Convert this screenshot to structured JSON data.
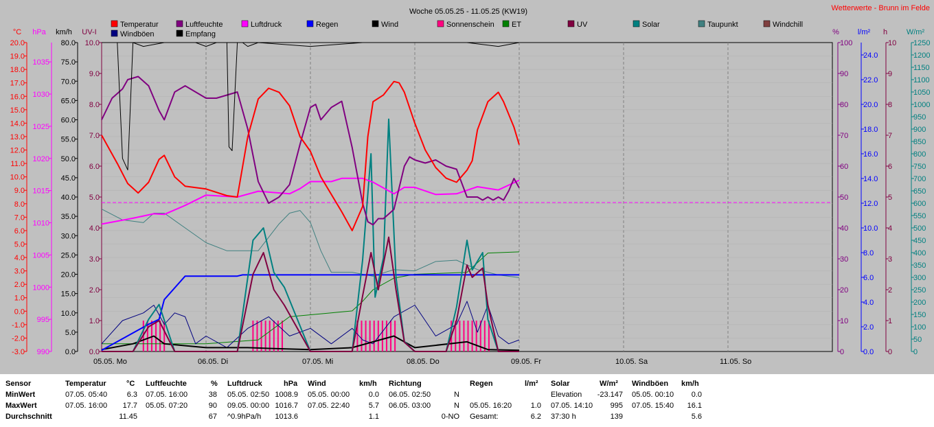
{
  "title": "Woche 05.05.25 - 11.05.25 (KW19)",
  "site_title": "Wetterwerte - Brunn im Felde",
  "colors": {
    "temperature": "#ff0000",
    "humidity": "#800080",
    "pressure": "#ff00ff",
    "rain": "#0000ff",
    "wind": "#000000",
    "sunshine": "#ff0080",
    "et": "#008000",
    "uv": "#800040",
    "solar": "#008080",
    "dewpoint": "#408080",
    "windchill": "#804040",
    "gusts": "#000080",
    "reception": "#000000"
  },
  "chart_data": {
    "type": "line",
    "title": "Woche 05.05.25 - 11.05.25 (KW19)",
    "x_labels": [
      "05.05. Mo",
      "06.05. Di",
      "07.05. Mi",
      "08.05. Do",
      "09.05. Fr",
      "10.05. Sa",
      "11.05. So"
    ],
    "xlim_days": [
      0,
      7
    ],
    "grid": true,
    "legend": [
      "Temperatur",
      "Luftfeuchte",
      "Luftdruck",
      "Regen",
      "Wind",
      "Sonnenschein",
      "ET",
      "UV",
      "Solar",
      "Taupunkt",
      "Windchill",
      "Windböen",
      "Empfang"
    ],
    "axes": {
      "temp_c": {
        "unit": "°C",
        "range": [
          -3,
          20
        ],
        "ticks": [
          "20.0",
          "19.0",
          "18.0",
          "17.0",
          "16.0",
          "15.0",
          "14.0",
          "13.0",
          "12.0",
          "11.0",
          "10.0",
          "9.0",
          "8.0",
          "7.0",
          "6.0",
          "5.0",
          "4.0",
          "3.0",
          "2.0",
          "1.0",
          "0.0",
          "-1.0",
          "-2.0",
          "-3.0"
        ]
      },
      "pressure_hpa": {
        "unit": "hPa",
        "range": [
          990,
          1038
        ],
        "ticks": [
          "1035",
          "1030",
          "1025",
          "1020",
          "1015",
          "1010",
          "1005",
          "1000",
          "995",
          "990"
        ]
      },
      "wind_kmh": {
        "unit": "km/h",
        "range": [
          0,
          80
        ],
        "ticks": [
          "80.0",
          "75.0",
          "70.0",
          "65.0",
          "60.0",
          "55.0",
          "50.0",
          "45.0",
          "40.0",
          "35.0",
          "30.0",
          "25.0",
          "20.0",
          "15.0",
          "10.0",
          "5.0",
          "0.0"
        ]
      },
      "uv_i": {
        "unit": "UV-I",
        "range": [
          0,
          10
        ],
        "ticks": [
          "10.0",
          "9.0",
          "8.0",
          "7.0",
          "6.0",
          "5.0",
          "4.0",
          "3.0",
          "2.0",
          "1.0",
          "0.0"
        ]
      },
      "humidity_pct": {
        "unit": "%",
        "range": [
          0,
          100
        ],
        "ticks": [
          "100",
          "90",
          "80",
          "70",
          "60",
          "50",
          "40",
          "30",
          "20",
          "10",
          "0"
        ]
      },
      "rain_lm2": {
        "unit": "l/m²",
        "range": [
          0,
          25
        ],
        "ticks": [
          "24.0",
          "22.0",
          "20.0",
          "18.0",
          "16.0",
          "14.0",
          "12.0",
          "10.0",
          "8.0",
          "6.0",
          "4.0",
          "2.0",
          "0.0"
        ]
      },
      "sun_h": {
        "unit": "h",
        "range": [
          0,
          10
        ],
        "ticks": [
          "10",
          "9",
          "8",
          "7",
          "6",
          "5",
          "4",
          "3",
          "2",
          "1",
          "0"
        ]
      },
      "solar_wm2": {
        "unit": "W/m²",
        "range": [
          0,
          1250
        ],
        "ticks": [
          "1250",
          "1200",
          "1150",
          "1100",
          "1050",
          "1000",
          "950",
          "900",
          "850",
          "800",
          "750",
          "700",
          "650",
          "600",
          "550",
          "500",
          "450",
          "400",
          "350",
          "300",
          "250",
          "200",
          "150",
          "100",
          "50",
          "0"
        ]
      }
    },
    "series": [
      {
        "name": "Temperatur",
        "axis": "temp_c",
        "x": [
          0,
          0.15,
          0.25,
          0.35,
          0.45,
          0.55,
          0.6,
          0.7,
          0.8,
          1.0,
          1.2,
          1.3,
          1.4,
          1.5,
          1.6,
          1.7,
          1.8,
          1.9,
          2.0,
          2.1,
          2.3,
          2.4,
          2.5,
          2.55,
          2.6,
          2.7,
          2.8,
          2.85,
          2.9,
          3.0,
          3.1,
          3.2,
          3.3,
          3.4,
          3.5,
          3.55,
          3.6,
          3.7,
          3.8,
          3.85,
          3.95,
          4.0
        ],
        "y": [
          13.1,
          11,
          9.5,
          8.8,
          9.6,
          11.3,
          11.6,
          10,
          9.3,
          9.1,
          8.6,
          8.5,
          13,
          15.8,
          16.6,
          16.3,
          15.3,
          13,
          11.9,
          10,
          7.4,
          6,
          7.8,
          13,
          15.6,
          16.1,
          17.1,
          17,
          16.3,
          14,
          12,
          10.7,
          9.9,
          9.6,
          10.5,
          11.2,
          13.5,
          15.6,
          16.3,
          15.6,
          13.7,
          12.4
        ]
      },
      {
        "name": "Luftfeuchte",
        "axis": "humidity_pct",
        "x": [
          0,
          0.1,
          0.2,
          0.25,
          0.35,
          0.45,
          0.55,
          0.6,
          0.7,
          0.8,
          0.9,
          1.0,
          1.1,
          1.2,
          1.3,
          1.4,
          1.5,
          1.6,
          1.7,
          1.8,
          1.9,
          2.0,
          2.05,
          2.1,
          2.2,
          2.3,
          2.4,
          2.5,
          2.55,
          2.6,
          2.65,
          2.7,
          2.8,
          2.9,
          2.95,
          3.0,
          3.1,
          3.2,
          3.3,
          3.4,
          3.5,
          3.6,
          3.65,
          3.7,
          3.75,
          3.8,
          3.85,
          3.9,
          3.95,
          4.0
        ],
        "y": [
          75,
          82,
          85,
          88,
          89,
          86,
          78,
          75,
          84,
          86,
          84,
          82,
          82,
          83,
          84,
          72,
          55,
          48,
          50,
          54,
          67,
          79,
          80,
          75,
          79,
          81,
          66,
          48,
          42,
          41,
          43,
          43,
          46,
          60,
          63,
          62,
          61,
          62,
          60,
          59,
          50,
          50,
          49,
          50,
          49,
          50,
          49,
          52,
          56,
          53
        ]
      },
      {
        "name": "Luftdruck",
        "axis": "pressure_hpa",
        "x": [
          0,
          0.3,
          0.5,
          0.6,
          0.8,
          1.0,
          1.2,
          1.3,
          1.5,
          1.8,
          1.9,
          2.0,
          2.2,
          2.3,
          2.5,
          2.6,
          2.8,
          2.9,
          3.0,
          3.2,
          3.4,
          3.6,
          3.8,
          4.0
        ],
        "y": [
          1009.8,
          1010.7,
          1011.4,
          1011.3,
          1012.7,
          1014.3,
          1014.1,
          1014.0,
          1014.9,
          1014.5,
          1015.3,
          1016.4,
          1016.4,
          1016.9,
          1016.9,
          1016.3,
          1014.5,
          1015.5,
          1015.5,
          1014.4,
          1014.5,
          1015.6,
          1015.1,
          1016.6
        ]
      },
      {
        "name": "Regen",
        "axis": "rain_lm2",
        "x": [
          0,
          0.15,
          0.3,
          0.45,
          0.55,
          0.6,
          0.8,
          1.0,
          1.2,
          1.3,
          1.35,
          2.0,
          3.0,
          3.5,
          4.0
        ],
        "y": [
          0.1,
          0.8,
          1.5,
          2.2,
          2.6,
          4.2,
          6.1,
          6.1,
          6.1,
          6.1,
          6.2,
          6.2,
          6.2,
          6.2,
          6.2
        ]
      },
      {
        "name": "Windböen",
        "axis": "wind_kmh",
        "x": [
          0,
          0.2,
          0.4,
          0.5,
          0.6,
          0.7,
          0.8,
          0.9,
          1.0,
          1.2,
          1.4,
          1.6,
          1.8,
          2.0,
          2.2,
          2.4,
          2.5,
          2.6,
          2.8,
          3.0,
          3.2,
          3.4,
          3.5,
          3.6,
          3.7,
          3.8,
          3.9,
          4.0
        ],
        "y": [
          2,
          8,
          10,
          12,
          7,
          10,
          9,
          2,
          4,
          1,
          6,
          9,
          4,
          6,
          2,
          6,
          3,
          2,
          9,
          12,
          4,
          7,
          13,
          5,
          12,
          4,
          2,
          3
        ]
      },
      {
        "name": "Wind",
        "axis": "wind_kmh",
        "x": [
          0,
          0.3,
          0.5,
          0.6,
          1.0,
          1.4,
          1.6,
          2.0,
          2.4,
          2.8,
          3.0,
          3.5,
          3.7,
          4.0
        ],
        "y": [
          0.5,
          2,
          4,
          2,
          1,
          1,
          0.8,
          0.5,
          1,
          4,
          1,
          2.5,
          0.5,
          0.3
        ]
      },
      {
        "name": "Solar",
        "axis": "solar_wm2",
        "x": [
          0,
          0.3,
          0.45,
          0.55,
          0.7,
          1.3,
          1.45,
          1.55,
          1.65,
          1.75,
          2.0,
          2.4,
          2.5,
          2.58,
          2.62,
          2.7,
          2.75,
          2.82,
          2.9,
          3.0,
          3.3,
          3.4,
          3.5,
          3.55,
          3.65,
          3.7,
          3.8,
          4.0
        ],
        "y": [
          0,
          0,
          130,
          190,
          0,
          0,
          450,
          500,
          320,
          260,
          0,
          0,
          370,
          800,
          220,
          380,
          940,
          300,
          40,
          0,
          0,
          180,
          450,
          330,
          400,
          130,
          0,
          0
        ]
      },
      {
        "name": "UV",
        "axis": "uv_i",
        "x": [
          0,
          0.3,
          0.45,
          0.55,
          0.7,
          1.3,
          1.45,
          1.55,
          1.65,
          1.75,
          2.0,
          2.4,
          2.5,
          2.58,
          2.65,
          2.75,
          2.82,
          2.9,
          3.0,
          3.3,
          3.4,
          3.5,
          3.55,
          3.65,
          3.7,
          3.8,
          4.0
        ],
        "y": [
          0,
          0,
          0.8,
          1.0,
          0,
          0,
          2.5,
          3.2,
          2.0,
          1.5,
          0,
          0,
          1.8,
          3.2,
          2.0,
          3.7,
          2.0,
          0.3,
          0,
          0,
          1.0,
          2.8,
          2.4,
          2.7,
          1.5,
          0,
          0
        ]
      },
      {
        "name": "Sonnenschein",
        "axis": "sun_h",
        "x_ranges": [
          [
            0.4,
            0.62
          ],
          [
            1.45,
            1.75
          ],
          [
            2.45,
            2.85
          ],
          [
            3.35,
            3.75
          ]
        ],
        "y": 1.0
      },
      {
        "name": "ET",
        "axis": "wind_kmh",
        "x": [
          0,
          0.5,
          1.0,
          1.5,
          1.8,
          2.2,
          2.4,
          2.5,
          2.6,
          2.8,
          3.0,
          3.5,
          3.7,
          4.0
        ],
        "y": [
          2,
          2,
          2,
          3,
          9,
          10,
          10.5,
          13,
          16,
          19,
          20,
          20.5,
          25.5,
          25.8
        ]
      },
      {
        "name": "Taupunkt",
        "axis": "temp_c",
        "x": [
          0,
          0.2,
          0.4,
          0.5,
          0.6,
          0.8,
          1.0,
          1.2,
          1.5,
          1.7,
          1.8,
          1.9,
          2.0,
          2.1,
          2.2,
          2.4,
          2.6,
          2.8,
          3.0,
          3.2,
          3.4,
          3.6,
          3.8,
          4.0
        ],
        "y": [
          7.6,
          6.8,
          6.6,
          7.3,
          7.3,
          6.2,
          5.1,
          4.5,
          4.5,
          6.5,
          7.3,
          7.5,
          6.6,
          4.5,
          2.9,
          2.9,
          2.6,
          3.1,
          3.0,
          3.7,
          3.8,
          3.1,
          2.7,
          2.5
        ]
      },
      {
        "name": "Empfang",
        "axis": "wind_kmh",
        "x": [
          0,
          0.1,
          0.15,
          0.2,
          0.25,
          0.3,
          0.4,
          0.6,
          0.9,
          1.0,
          1.1,
          1.2,
          1.22,
          1.25,
          1.3,
          1.35,
          1.4,
          1.5,
          2.0,
          2.5,
          3.0,
          3.5,
          3.8,
          4.0
        ],
        "y": [
          80,
          80,
          80,
          50,
          47,
          80,
          79,
          80,
          80,
          79,
          80,
          80,
          53,
          52,
          80,
          80,
          79,
          80,
          79,
          80,
          80,
          80,
          79,
          80
        ]
      }
    ]
  },
  "table": {
    "columns": [
      {
        "title": "Sensor",
        "unit": ""
      },
      {
        "title": "Temperatur",
        "unit": "°C"
      },
      {
        "title": "Luftfeuchte",
        "unit": "%"
      },
      {
        "title": "Luftdruck",
        "unit": "hPa"
      },
      {
        "title": "Wind",
        "unit": "km/h"
      },
      {
        "title": "Richtung",
        "unit": ""
      },
      {
        "title": "Regen",
        "unit": "l/m²"
      },
      {
        "title": "Solar",
        "unit": "W/m²"
      },
      {
        "title": "Windböen",
        "unit": "km/h"
      }
    ],
    "rows": [
      {
        "label": "MinWert",
        "cells": [
          [
            "07.05.  05:40",
            "6.3"
          ],
          [
            "07.05.  16:00",
            "38"
          ],
          [
            "05.05.  02:50",
            "1008.9"
          ],
          [
            "05.05.  00:00",
            "0.0"
          ],
          [
            "06.05.  02:50",
            "N"
          ],
          [
            "",
            ""
          ],
          [
            "Elevation",
            "-23.147"
          ],
          [
            "05.05.  00:10",
            "0.0"
          ]
        ]
      },
      {
        "label": "MaxWert",
        "cells": [
          [
            "07.05.  16:00",
            "17.7"
          ],
          [
            "05.05.  07:20",
            "90"
          ],
          [
            "09.05.  00:00",
            "1016.7"
          ],
          [
            "07.05.  22:40",
            "5.7"
          ],
          [
            "06.05.  03:00",
            "N"
          ],
          [
            "05.05.  16:20",
            "1.0"
          ],
          [
            "07.05.  14:10",
            "995"
          ],
          [
            "07.05.  15:40",
            "16.1"
          ]
        ]
      },
      {
        "label": "Durchschnitt",
        "cells": [
          [
            "",
            "11.45"
          ],
          [
            "",
            "67"
          ],
          [
            "^0.9hPa/h",
            "1013.6"
          ],
          [
            "",
            "1.1"
          ],
          [
            "",
            "0-NO"
          ],
          [
            "Gesamt:",
            "6.2"
          ],
          [
            "37:30 h",
            "139"
          ],
          [
            "",
            "5.6"
          ]
        ]
      }
    ]
  }
}
